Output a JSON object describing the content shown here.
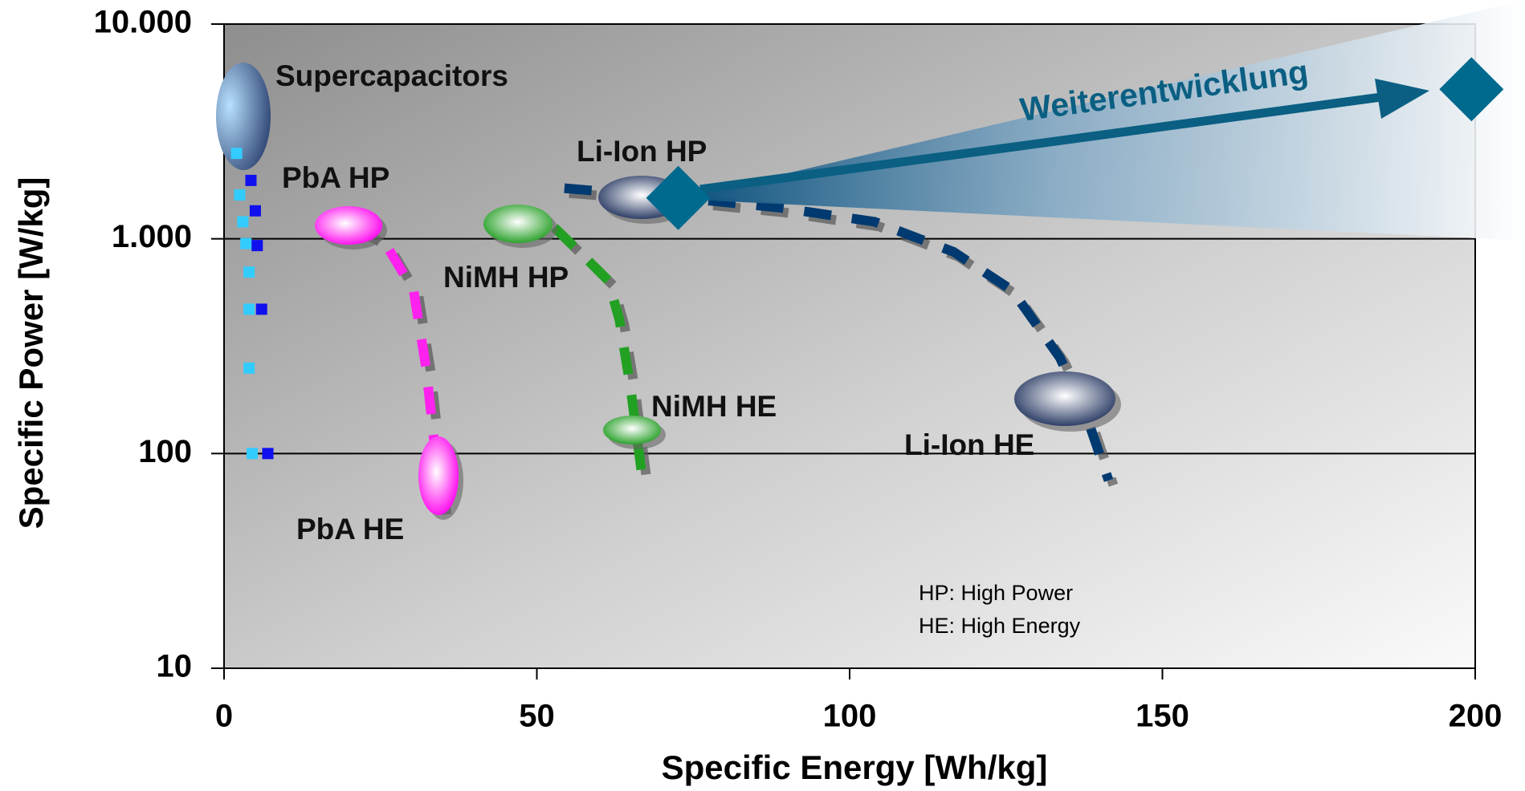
{
  "chart_data": {
    "type": "scatter",
    "xlabel": "Specific Energy  [Wh/kg]",
    "ylabel": "Specific Power  [W/kg]",
    "xlim": [
      0,
      200
    ],
    "xticks": [
      0,
      50,
      100,
      150,
      200
    ],
    "ylim": [
      10,
      10000
    ],
    "log_y": true,
    "yticks": [
      10,
      100,
      {
        "value": 1000,
        "label": "1.000"
      },
      {
        "value": 10000,
        "label": "10.000"
      }
    ],
    "grid": true,
    "series": [
      {
        "style": "square",
        "color": "#33ccff",
        "x": [
          2,
          2.5,
          3,
          3.5,
          4,
          4,
          4,
          4.5
        ],
        "values": [
          2500,
          1600,
          1200,
          950,
          700,
          470,
          250,
          100
        ]
      },
      {
        "style": "square",
        "color": "#1010ee",
        "x": [
          4.3,
          5,
          5.3,
          6,
          7
        ],
        "values": [
          1870,
          1350,
          930,
          470,
          100
        ]
      },
      {
        "style": "dash",
        "color": "#ff22ee",
        "x": [
          20.2,
          25.6,
          30.3,
          32.3,
          33.4,
          35
        ],
        "values": [
          1170,
          970,
          575,
          250,
          127,
          49
        ]
      },
      {
        "style": "dash",
        "color": "#22a022",
        "x": [
          52.8,
          57.5,
          61.4,
          63.2,
          65,
          66.8
        ],
        "values": [
          1130,
          830,
          640,
          420,
          200,
          79
        ]
      },
      {
        "style": "dash",
        "color": "#003a70",
        "x": [
          54.4,
          73,
          88.6,
          104,
          116.6,
          126,
          133.6,
          137.5,
          141.4
        ],
        "values": [
          1720,
          1550,
          1400,
          1200,
          870,
          575,
          280,
          160,
          75
        ]
      }
    ],
    "markers": {
      "color": "#006a8e",
      "x": [
        72.6,
        199.4
      ],
      "values": [
        1550,
        4970
      ]
    },
    "annotations": [
      "Supercapacitors",
      "PbA HP",
      "NiMH HP",
      "Li-Ion HP",
      "NiMH HE",
      "Li-Ion HE",
      "PbA HE"
    ],
    "arrow_label": "Weiterentwicklung",
    "notes": [
      "HP: High Power",
      "HE: High Energy"
    ]
  }
}
